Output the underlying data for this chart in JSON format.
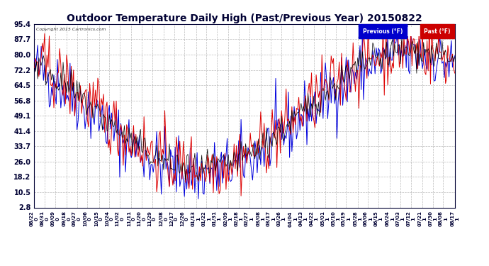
{
  "title": "Outdoor Temperature Daily High (Past/Previous Year) 20150822",
  "copyright_text": "Copyright 2015 Cartronics.com",
  "yticks": [
    2.8,
    10.5,
    18.2,
    26.0,
    33.7,
    41.4,
    49.1,
    56.8,
    64.5,
    72.2,
    80.0,
    87.7,
    95.4
  ],
  "ylim": [
    2.8,
    95.4
  ],
  "legend_labels": [
    "Previous (°F)",
    "Past (°F)"
  ],
  "legend_colors": [
    "#0000cc",
    "#cc0000"
  ],
  "line_color_previous": "#0000dd",
  "line_color_past": "#dd0000",
  "line_color_current": "#000000",
  "background_color": "#ffffff",
  "grid_color": "#aaaaaa",
  "title_color": "#000033",
  "title_fontsize": 10,
  "x_dates": [
    "08/22\n0",
    "08/31\n0",
    "09/09\n0",
    "09/18\n0",
    "09/27\n0",
    "10/06\n0",
    "10/15\n0",
    "10/24\n0",
    "11/02\n0",
    "11/11\n0",
    "11/20\n0",
    "11/29\n0",
    "12/08\n0",
    "12/17\n0",
    "12/26\n0",
    "01/13\n1",
    "01/22\n1",
    "01/31\n1",
    "02/09\n1",
    "02/18\n1",
    "02/27\n1",
    "03/08\n1",
    "03/17\n1",
    "03/26\n1",
    "04/04\n1",
    "04/13\n1",
    "04/22\n1",
    "05/01\n1",
    "05/10\n1",
    "05/19\n1",
    "05/28\n1",
    "06/06\n1",
    "06/15\n1",
    "06/24\n1",
    "07/03\n1",
    "07/12\n1",
    "07/21\n1",
    "07/30\n1",
    "08/08\n1",
    "08/17\n1"
  ],
  "n_points": 365,
  "seed": 42
}
